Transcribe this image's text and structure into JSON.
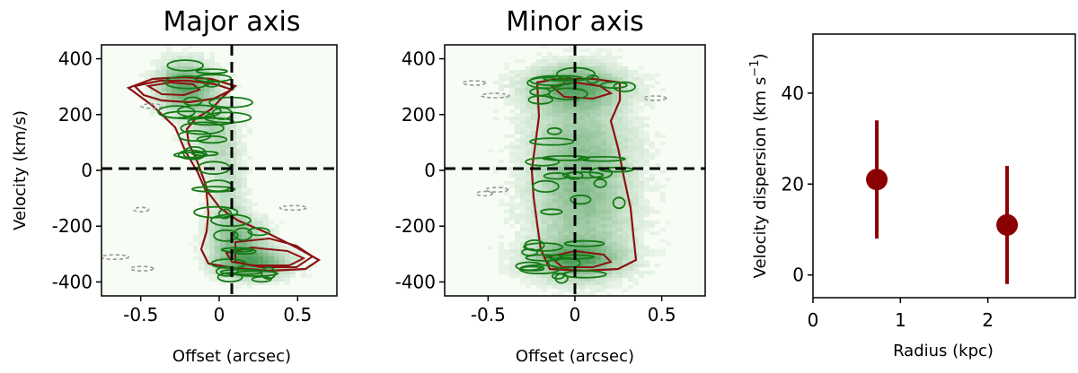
{
  "chart_data": [
    {
      "type": "heatmap",
      "title": "Major axis",
      "xlabel": "Offset (arcsec)",
      "ylabel": "Velocity (km/s)",
      "xlim": [
        -0.75,
        0.75
      ],
      "ylim": [
        -450,
        450
      ],
      "xticks": [
        -0.5,
        0,
        0.5
      ],
      "xtick_labels": [
        "-0.5",
        "0",
        "0.5"
      ],
      "yticks": [
        -400,
        -200,
        0,
        200,
        400
      ],
      "ytick_labels": [
        "-400",
        "-200",
        "0",
        "200",
        "400"
      ],
      "reference_lines": {
        "x": 0,
        "y": 0
      },
      "colors": {
        "map": "#2e8b3e",
        "inner_contours": "#157a15",
        "outer_contours": "#8b1212",
        "negative_contours": "#9a9a9a"
      },
      "emission_regions": [
        {
          "x": -0.22,
          "y": 300,
          "sx": 0.12,
          "sy": 60,
          "amp": 1.0
        },
        {
          "x": -0.05,
          "y": 150,
          "sx": 0.1,
          "sy": 80,
          "amp": 0.45
        },
        {
          "x": 0.05,
          "y": -60,
          "sx": 0.08,
          "sy": 120,
          "amp": 0.35
        },
        {
          "x": 0.12,
          "y": -250,
          "sx": 0.12,
          "sy": 60,
          "amp": 0.7
        },
        {
          "x": 0.22,
          "y": -335,
          "sx": 0.15,
          "sy": 35,
          "amp": 1.0
        }
      ]
    },
    {
      "type": "heatmap",
      "title": "Minor axis",
      "xlabel": "Offset (arcsec)",
      "ylabel": "",
      "xlim": [
        -0.75,
        0.75
      ],
      "ylim": [
        -450,
        450
      ],
      "xticks": [
        -0.5,
        0,
        0.5
      ],
      "xtick_labels": [
        "-0.5",
        "0",
        "0.5"
      ],
      "yticks": [
        -400,
        -200,
        0,
        200,
        400
      ],
      "ytick_labels": [
        "-400",
        "-200",
        "0",
        "200",
        "400"
      ],
      "reference_lines": {
        "x": 0,
        "y": 0
      },
      "colors": {
        "map": "#2e8b3e",
        "inner_contours": "#157a15",
        "outer_contours": "#8b1212",
        "negative_contours": "#9a9a9a"
      },
      "emission_regions": [
        {
          "x": 0.0,
          "y": 300,
          "sx": 0.18,
          "sy": 50,
          "amp": 0.9
        },
        {
          "x": 0.02,
          "y": 100,
          "sx": 0.2,
          "sy": 140,
          "amp": 0.55
        },
        {
          "x": 0.05,
          "y": -150,
          "sx": 0.2,
          "sy": 140,
          "amp": 0.55
        },
        {
          "x": 0.0,
          "y": -320,
          "sx": 0.18,
          "sy": 45,
          "amp": 0.9
        }
      ]
    },
    {
      "type": "scatter",
      "title": "",
      "xlabel": "Radius (kpc)",
      "ylabel": "Velocity dispersion (km s",
      "ylabel_superscript": "−1",
      "ylabel_suffix": ")",
      "xlim": [
        0,
        3
      ],
      "ylim": [
        -5,
        53
      ],
      "xticks": [
        0,
        1,
        2
      ],
      "xtick_labels": [
        "0",
        "1",
        "2"
      ],
      "yticks": [
        0,
        20,
        40
      ],
      "ytick_labels": [
        "0",
        "20",
        "40"
      ],
      "series": [
        {
          "color": "#8b0000",
          "x": [
            0.73,
            2.22
          ],
          "y": [
            21,
            11
          ],
          "yerr_low": [
            13,
            13
          ],
          "yerr_high": [
            13,
            13
          ]
        }
      ]
    }
  ]
}
